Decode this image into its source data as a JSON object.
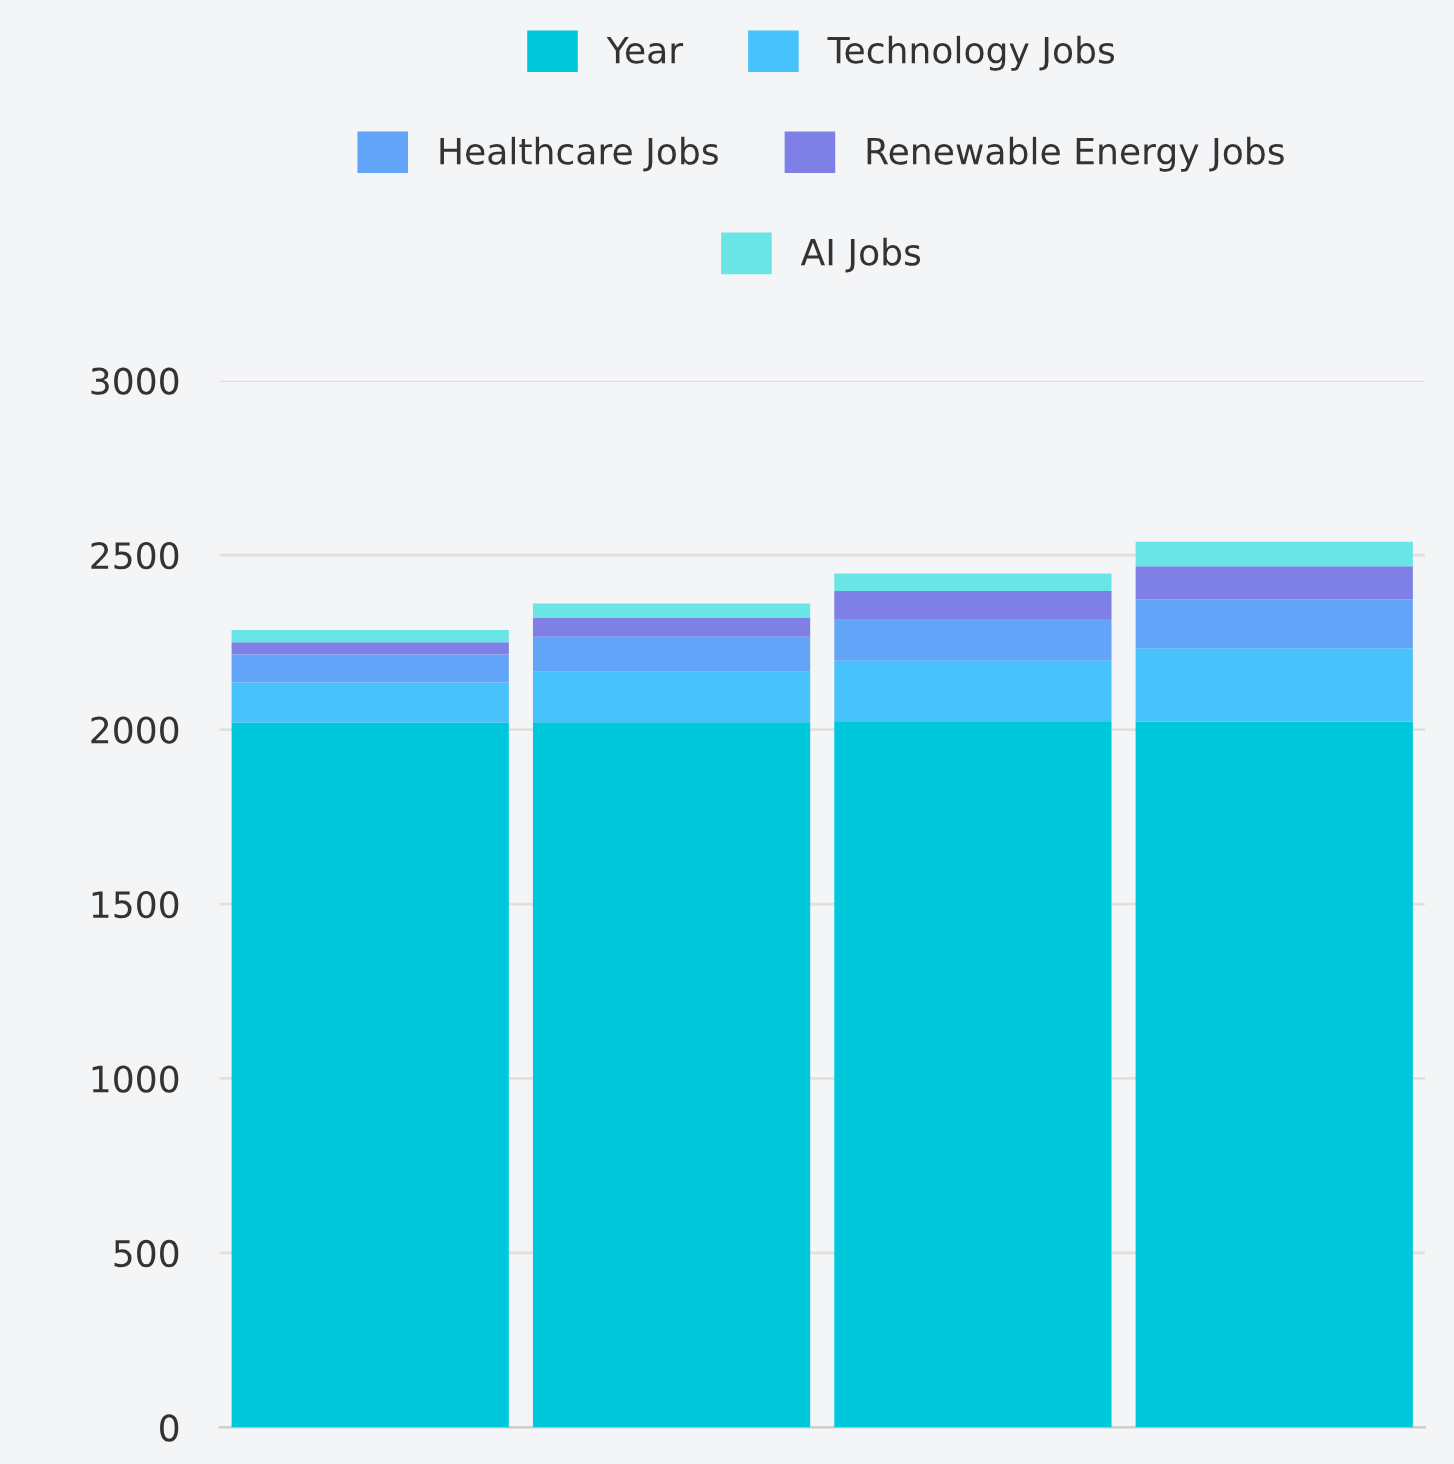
{
  "chart_data": {
    "type": "bar",
    "stacked": true,
    "categories": [
      null,
      null,
      null,
      null
    ],
    "series": [
      {
        "name": "Year",
        "color": "#00c8dc",
        "values": [
          2020,
          2021,
          2022,
          2023
        ]
      },
      {
        "name": "Technology Jobs",
        "color": "#48c2fb",
        "values": [
          115,
          145,
          175,
          210
        ]
      },
      {
        "name": "Healthcare Jobs",
        "color": "#62a4f8",
        "values": [
          80,
          100,
          120,
          140
        ]
      },
      {
        "name": "Renewable Energy Jobs",
        "color": "#7e80e6",
        "values": [
          35,
          55,
          80,
          95
        ]
      },
      {
        "name": "AI Jobs",
        "color": "#6ae5e6",
        "values": [
          35,
          40,
          50,
          70
        ]
      }
    ],
    "ylim": [
      0,
      3000
    ],
    "yticks": [
      0,
      500,
      1000,
      1500,
      2000,
      2500,
      3000
    ],
    "grid": "y",
    "legend": "top"
  }
}
